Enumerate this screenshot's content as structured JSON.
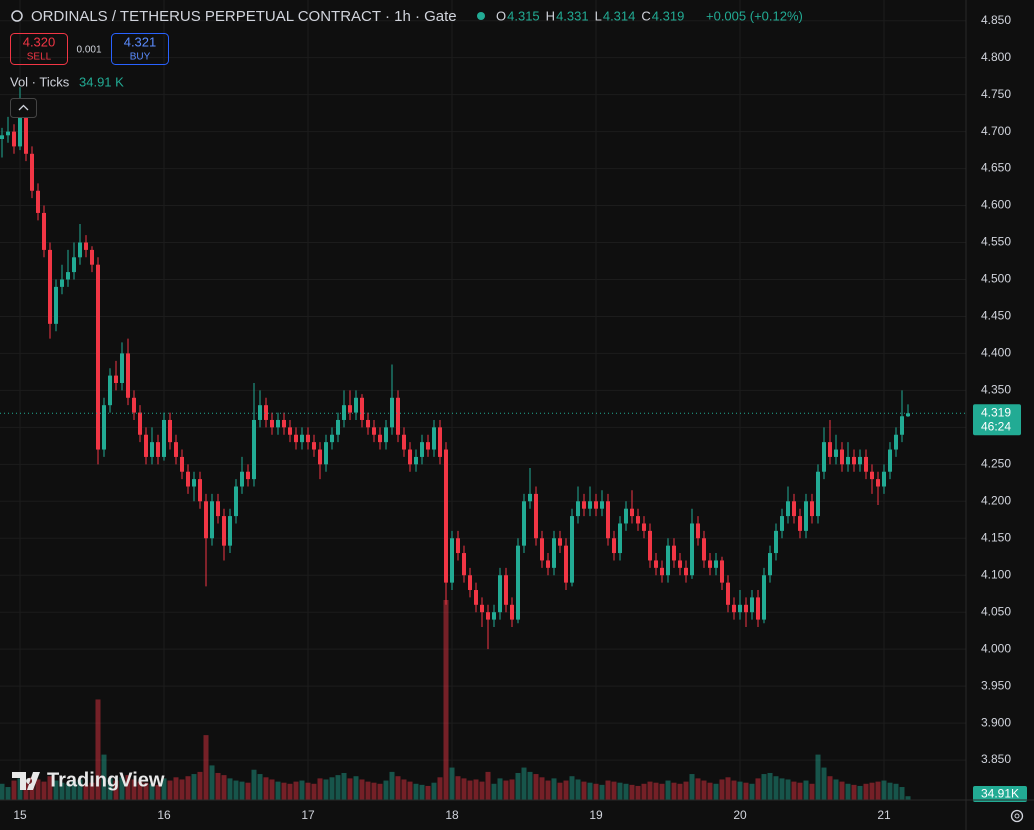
{
  "chart_data": {
    "type": "candlestick",
    "title": "ORDINALS / TETHERUS PERPETUAL CONTRACT · 1h · Gate",
    "ohlc_labels": [
      "O",
      "H",
      "L",
      "C"
    ],
    "ohlc_values": [
      "4.315",
      "4.331",
      "4.314",
      "4.319"
    ],
    "change": "+0.005 (+0.12%)",
    "sell_price": "4.320",
    "sell_label": "SELL",
    "spread": "0.001",
    "buy_price": "4.321",
    "buy_label": "BUY",
    "volume_title": "Vol · Ticks",
    "volume_value_label": "34.91 K",
    "last_price_label": "4.319",
    "countdown": "46:24",
    "last_volume_label": "34.91K",
    "watermark": "TradingView",
    "up_color": "#22ab94",
    "down_color": "#f23645",
    "grid": true,
    "ylim": [
      3.796,
      4.878
    ],
    "yticks": [
      {
        "value": 3.85,
        "label": "3.850"
      },
      {
        "value": 3.9,
        "label": "3.900"
      },
      {
        "value": 3.95,
        "label": "3.950"
      },
      {
        "value": 4.0,
        "label": "4.000"
      },
      {
        "value": 4.05,
        "label": "4.050"
      },
      {
        "value": 4.1,
        "label": "4.100"
      },
      {
        "value": 4.15,
        "label": "4.150"
      },
      {
        "value": 4.2,
        "label": "4.200"
      },
      {
        "value": 4.25,
        "label": "4.250"
      },
      {
        "value": 4.3,
        "label": "4.300"
      },
      {
        "value": 4.35,
        "label": "4.350"
      },
      {
        "value": 4.4,
        "label": "4.400"
      },
      {
        "value": 4.45,
        "label": "4.450"
      },
      {
        "value": 4.5,
        "label": "4.500"
      },
      {
        "value": 4.55,
        "label": "4.550"
      },
      {
        "value": 4.6,
        "label": "4.600"
      },
      {
        "value": 4.65,
        "label": "4.650"
      },
      {
        "value": 4.7,
        "label": "4.700"
      },
      {
        "value": 4.75,
        "label": "4.750"
      },
      {
        "value": 4.8,
        "label": "4.800"
      },
      {
        "value": 4.85,
        "label": "4.850"
      }
    ],
    "categories": [
      null,
      null,
      null,
      "15",
      null,
      null,
      null,
      null,
      null,
      null,
      null,
      null,
      null,
      null,
      null,
      null,
      null,
      null,
      null,
      null,
      null,
      null,
      null,
      null,
      null,
      null,
      null,
      "16",
      null,
      null,
      null,
      null,
      null,
      null,
      null,
      null,
      null,
      null,
      null,
      null,
      null,
      null,
      null,
      null,
      null,
      null,
      null,
      null,
      null,
      null,
      null,
      "17",
      null,
      null,
      null,
      null,
      null,
      null,
      null,
      null,
      null,
      null,
      null,
      null,
      null,
      null,
      null,
      null,
      null,
      null,
      null,
      null,
      null,
      null,
      null,
      "18",
      null,
      null,
      null,
      null,
      null,
      null,
      null,
      null,
      null,
      null,
      null,
      null,
      null,
      null,
      null,
      null,
      null,
      null,
      null,
      null,
      null,
      null,
      null,
      "19",
      null,
      null,
      null,
      null,
      null,
      null,
      null,
      null,
      null,
      null,
      null,
      null,
      null,
      null,
      null,
      null,
      null,
      null,
      null,
      null,
      null,
      null,
      null,
      "20",
      null,
      null,
      null,
      null,
      null,
      null,
      null,
      null,
      null,
      null,
      null,
      null,
      null,
      null,
      null,
      null,
      null,
      null,
      null,
      null,
      null,
      null,
      null,
      "21",
      null,
      null,
      null,
      null
    ],
    "ohlc": [
      [
        4.69,
        4.705,
        4.665,
        4.695
      ],
      [
        4.695,
        4.72,
        4.685,
        4.7
      ],
      [
        4.7,
        4.71,
        4.67,
        4.68
      ],
      [
        4.68,
        4.76,
        4.675,
        4.725
      ],
      [
        4.725,
        4.74,
        4.66,
        4.67
      ],
      [
        4.67,
        4.68,
        4.61,
        4.62
      ],
      [
        4.62,
        4.63,
        4.58,
        4.59
      ],
      [
        4.59,
        4.6,
        4.53,
        4.54
      ],
      [
        4.54,
        4.55,
        4.42,
        4.44
      ],
      [
        4.44,
        4.5,
        4.43,
        4.49
      ],
      [
        4.49,
        4.52,
        4.48,
        4.5
      ],
      [
        4.5,
        4.54,
        4.49,
        4.51
      ],
      [
        4.51,
        4.55,
        4.5,
        4.53
      ],
      [
        4.53,
        4.575,
        4.52,
        4.55
      ],
      [
        4.55,
        4.56,
        4.53,
        4.54
      ],
      [
        4.54,
        4.545,
        4.51,
        4.52
      ],
      [
        4.52,
        4.53,
        4.25,
        4.27
      ],
      [
        4.27,
        4.34,
        4.26,
        4.33
      ],
      [
        4.33,
        4.38,
        4.32,
        4.37
      ],
      [
        4.37,
        4.39,
        4.35,
        4.36
      ],
      [
        4.36,
        4.415,
        4.35,
        4.4
      ],
      [
        4.4,
        4.42,
        4.33,
        4.34
      ],
      [
        4.34,
        4.35,
        4.31,
        4.32
      ],
      [
        4.32,
        4.33,
        4.28,
        4.29
      ],
      [
        4.29,
        4.3,
        4.25,
        4.26
      ],
      [
        4.26,
        4.3,
        4.25,
        4.28
      ],
      [
        4.28,
        4.29,
        4.25,
        4.26
      ],
      [
        4.26,
        4.32,
        4.255,
        4.31
      ],
      [
        4.31,
        4.32,
        4.27,
        4.28
      ],
      [
        4.28,
        4.29,
        4.25,
        4.26
      ],
      [
        4.26,
        4.27,
        4.23,
        4.24
      ],
      [
        4.24,
        4.25,
        4.21,
        4.22
      ],
      [
        4.22,
        4.24,
        4.2,
        4.23
      ],
      [
        4.23,
        4.24,
        4.19,
        4.2
      ],
      [
        4.2,
        4.21,
        4.085,
        4.15
      ],
      [
        4.15,
        4.21,
        4.14,
        4.2
      ],
      [
        4.2,
        4.21,
        4.17,
        4.18
      ],
      [
        4.18,
        4.19,
        4.12,
        4.14
      ],
      [
        4.14,
        4.19,
        4.13,
        4.18
      ],
      [
        4.18,
        4.23,
        4.17,
        4.22
      ],
      [
        4.22,
        4.26,
        4.21,
        4.24
      ],
      [
        4.24,
        4.25,
        4.22,
        4.23
      ],
      [
        4.23,
        4.36,
        4.22,
        4.31
      ],
      [
        4.31,
        4.35,
        4.3,
        4.33
      ],
      [
        4.33,
        4.34,
        4.3,
        4.31
      ],
      [
        4.31,
        4.32,
        4.29,
        4.3
      ],
      [
        4.3,
        4.32,
        4.29,
        4.31
      ],
      [
        4.31,
        4.32,
        4.29,
        4.3
      ],
      [
        4.3,
        4.31,
        4.28,
        4.29
      ],
      [
        4.29,
        4.3,
        4.27,
        4.28
      ],
      [
        4.28,
        4.3,
        4.27,
        4.29
      ],
      [
        4.29,
        4.3,
        4.27,
        4.28
      ],
      [
        4.28,
        4.29,
        4.26,
        4.27
      ],
      [
        4.27,
        4.28,
        4.23,
        4.25
      ],
      [
        4.25,
        4.29,
        4.24,
        4.28
      ],
      [
        4.28,
        4.3,
        4.27,
        4.29
      ],
      [
        4.29,
        4.32,
        4.28,
        4.31
      ],
      [
        4.31,
        4.35,
        4.3,
        4.33
      ],
      [
        4.33,
        4.35,
        4.31,
        4.32
      ],
      [
        4.32,
        4.35,
        4.31,
        4.34
      ],
      [
        4.34,
        4.345,
        4.3,
        4.31
      ],
      [
        4.31,
        4.32,
        4.29,
        4.3
      ],
      [
        4.3,
        4.31,
        4.28,
        4.29
      ],
      [
        4.29,
        4.3,
        4.27,
        4.28
      ],
      [
        4.28,
        4.31,
        4.27,
        4.3
      ],
      [
        4.3,
        4.385,
        4.29,
        4.34
      ],
      [
        4.34,
        4.35,
        4.28,
        4.29
      ],
      [
        4.29,
        4.3,
        4.26,
        4.27
      ],
      [
        4.27,
        4.28,
        4.24,
        4.25
      ],
      [
        4.25,
        4.27,
        4.24,
        4.26
      ],
      [
        4.26,
        4.29,
        4.25,
        4.28
      ],
      [
        4.28,
        4.29,
        4.26,
        4.27
      ],
      [
        4.27,
        4.31,
        4.26,
        4.3
      ],
      [
        4.3,
        4.31,
        4.25,
        4.26
      ],
      [
        4.27,
        4.28,
        4.06,
        4.09
      ],
      [
        4.09,
        4.16,
        4.08,
        4.15
      ],
      [
        4.15,
        4.16,
        4.12,
        4.13
      ],
      [
        4.13,
        4.14,
        4.09,
        4.1
      ],
      [
        4.1,
        4.11,
        4.07,
        4.08
      ],
      [
        4.08,
        4.09,
        4.05,
        4.06
      ],
      [
        4.06,
        4.07,
        4.03,
        4.05
      ],
      [
        4.05,
        4.06,
        4.0,
        4.04
      ],
      [
        4.04,
        4.06,
        4.03,
        4.05
      ],
      [
        4.05,
        4.11,
        4.04,
        4.1
      ],
      [
        4.1,
        4.11,
        4.05,
        4.06
      ],
      [
        4.06,
        4.07,
        4.03,
        4.04
      ],
      [
        4.04,
        4.15,
        4.035,
        4.14
      ],
      [
        4.14,
        4.21,
        4.13,
        4.2
      ],
      [
        4.2,
        4.245,
        4.19,
        4.21
      ],
      [
        4.21,
        4.22,
        4.14,
        4.15
      ],
      [
        4.15,
        4.16,
        4.11,
        4.12
      ],
      [
        4.12,
        4.13,
        4.1,
        4.11
      ],
      [
        4.11,
        4.16,
        4.1,
        4.15
      ],
      [
        4.15,
        4.16,
        4.13,
        4.14
      ],
      [
        4.14,
        4.15,
        4.08,
        4.09
      ],
      [
        4.09,
        4.19,
        4.085,
        4.18
      ],
      [
        4.18,
        4.22,
        4.17,
        4.2
      ],
      [
        4.2,
        4.21,
        4.18,
        4.19
      ],
      [
        4.19,
        4.22,
        4.18,
        4.2
      ],
      [
        4.2,
        4.21,
        4.18,
        4.19
      ],
      [
        4.19,
        4.215,
        4.18,
        4.2
      ],
      [
        4.2,
        4.21,
        4.14,
        4.15
      ],
      [
        4.15,
        4.16,
        4.12,
        4.13
      ],
      [
        4.13,
        4.18,
        4.12,
        4.17
      ],
      [
        4.17,
        4.2,
        4.16,
        4.19
      ],
      [
        4.19,
        4.215,
        4.17,
        4.18
      ],
      [
        4.18,
        4.19,
        4.16,
        4.17
      ],
      [
        4.17,
        4.18,
        4.15,
        4.16
      ],
      [
        4.16,
        4.17,
        4.11,
        4.12
      ],
      [
        4.12,
        4.13,
        4.1,
        4.11
      ],
      [
        4.11,
        4.12,
        4.09,
        4.1
      ],
      [
        4.1,
        4.15,
        4.09,
        4.14
      ],
      [
        4.14,
        4.15,
        4.11,
        4.12
      ],
      [
        4.12,
        4.13,
        4.1,
        4.11
      ],
      [
        4.11,
        4.12,
        4.09,
        4.1
      ],
      [
        4.1,
        4.19,
        4.095,
        4.17
      ],
      [
        4.17,
        4.18,
        4.14,
        4.15
      ],
      [
        4.15,
        4.16,
        4.11,
        4.12
      ],
      [
        4.12,
        4.13,
        4.1,
        4.11
      ],
      [
        4.11,
        4.13,
        4.1,
        4.12
      ],
      [
        4.12,
        4.125,
        4.08,
        4.09
      ],
      [
        4.09,
        4.1,
        4.05,
        4.06
      ],
      [
        4.06,
        4.07,
        4.04,
        4.05
      ],
      [
        4.05,
        4.08,
        4.04,
        4.06
      ],
      [
        4.06,
        4.07,
        4.03,
        4.05
      ],
      [
        4.05,
        4.08,
        4.04,
        4.07
      ],
      [
        4.07,
        4.08,
        4.03,
        4.04
      ],
      [
        4.04,
        4.11,
        4.035,
        4.1
      ],
      [
        4.1,
        4.14,
        4.09,
        4.13
      ],
      [
        4.13,
        4.17,
        4.12,
        4.16
      ],
      [
        4.16,
        4.19,
        4.15,
        4.18
      ],
      [
        4.18,
        4.22,
        4.17,
        4.2
      ],
      [
        4.2,
        4.21,
        4.17,
        4.18
      ],
      [
        4.18,
        4.19,
        4.15,
        4.16
      ],
      [
        4.16,
        4.21,
        4.15,
        4.2
      ],
      [
        4.2,
        4.21,
        4.17,
        4.18
      ],
      [
        4.18,
        4.25,
        4.17,
        4.24
      ],
      [
        4.24,
        4.3,
        4.23,
        4.28
      ],
      [
        4.28,
        4.31,
        4.25,
        4.26
      ],
      [
        4.26,
        4.29,
        4.25,
        4.27
      ],
      [
        4.27,
        4.28,
        4.24,
        4.25
      ],
      [
        4.25,
        4.28,
        4.24,
        4.26
      ],
      [
        4.26,
        4.27,
        4.24,
        4.25
      ],
      [
        4.25,
        4.27,
        4.24,
        4.26
      ],
      [
        4.26,
        4.27,
        4.23,
        4.24
      ],
      [
        4.24,
        4.25,
        4.21,
        4.23
      ],
      [
        4.23,
        4.24,
        4.195,
        4.22
      ],
      [
        4.22,
        4.25,
        4.21,
        4.24
      ],
      [
        4.24,
        4.28,
        4.23,
        4.27
      ],
      [
        4.27,
        4.3,
        4.26,
        4.29
      ],
      [
        4.29,
        4.35,
        4.28,
        4.315
      ],
      [
        4.315,
        4.331,
        4.314,
        4.319
      ]
    ],
    "volume": [
      150000,
      120000,
      180000,
      200000,
      160000,
      210000,
      190000,
      170000,
      220000,
      180000,
      160000,
      150000,
      170000,
      190000,
      140000,
      160000,
      930000,
      420000,
      200000,
      180000,
      210000,
      230000,
      190000,
      170000,
      160000,
      150000,
      140000,
      200000,
      180000,
      210000,
      190000,
      220000,
      240000,
      260000,
      600000,
      320000,
      250000,
      230000,
      200000,
      180000,
      170000,
      160000,
      280000,
      240000,
      210000,
      190000,
      170000,
      160000,
      150000,
      170000,
      180000,
      160000,
      150000,
      200000,
      190000,
      210000,
      230000,
      250000,
      200000,
      220000,
      190000,
      170000,
      160000,
      150000,
      180000,
      260000,
      220000,
      190000,
      170000,
      150000,
      140000,
      130000,
      160000,
      210000,
      1850000,
      300000,
      220000,
      200000,
      180000,
      190000,
      170000,
      260000,
      150000,
      200000,
      180000,
      190000,
      250000,
      300000,
      260000,
      240000,
      210000,
      180000,
      200000,
      160000,
      180000,
      220000,
      190000,
      170000,
      160000,
      150000,
      140000,
      180000,
      170000,
      160000,
      150000,
      140000,
      130000,
      150000,
      170000,
      160000,
      150000,
      180000,
      160000,
      150000,
      170000,
      240000,
      200000,
      180000,
      160000,
      150000,
      190000,
      210000,
      180000,
      170000,
      160000,
      150000,
      200000,
      240000,
      250000,
      220000,
      200000,
      190000,
      170000,
      160000,
      180000,
      150000,
      420000,
      300000,
      220000,
      190000,
      170000,
      150000,
      140000,
      130000,
      150000,
      160000,
      170000,
      180000,
      160000,
      150000,
      120000,
      34910
    ]
  }
}
